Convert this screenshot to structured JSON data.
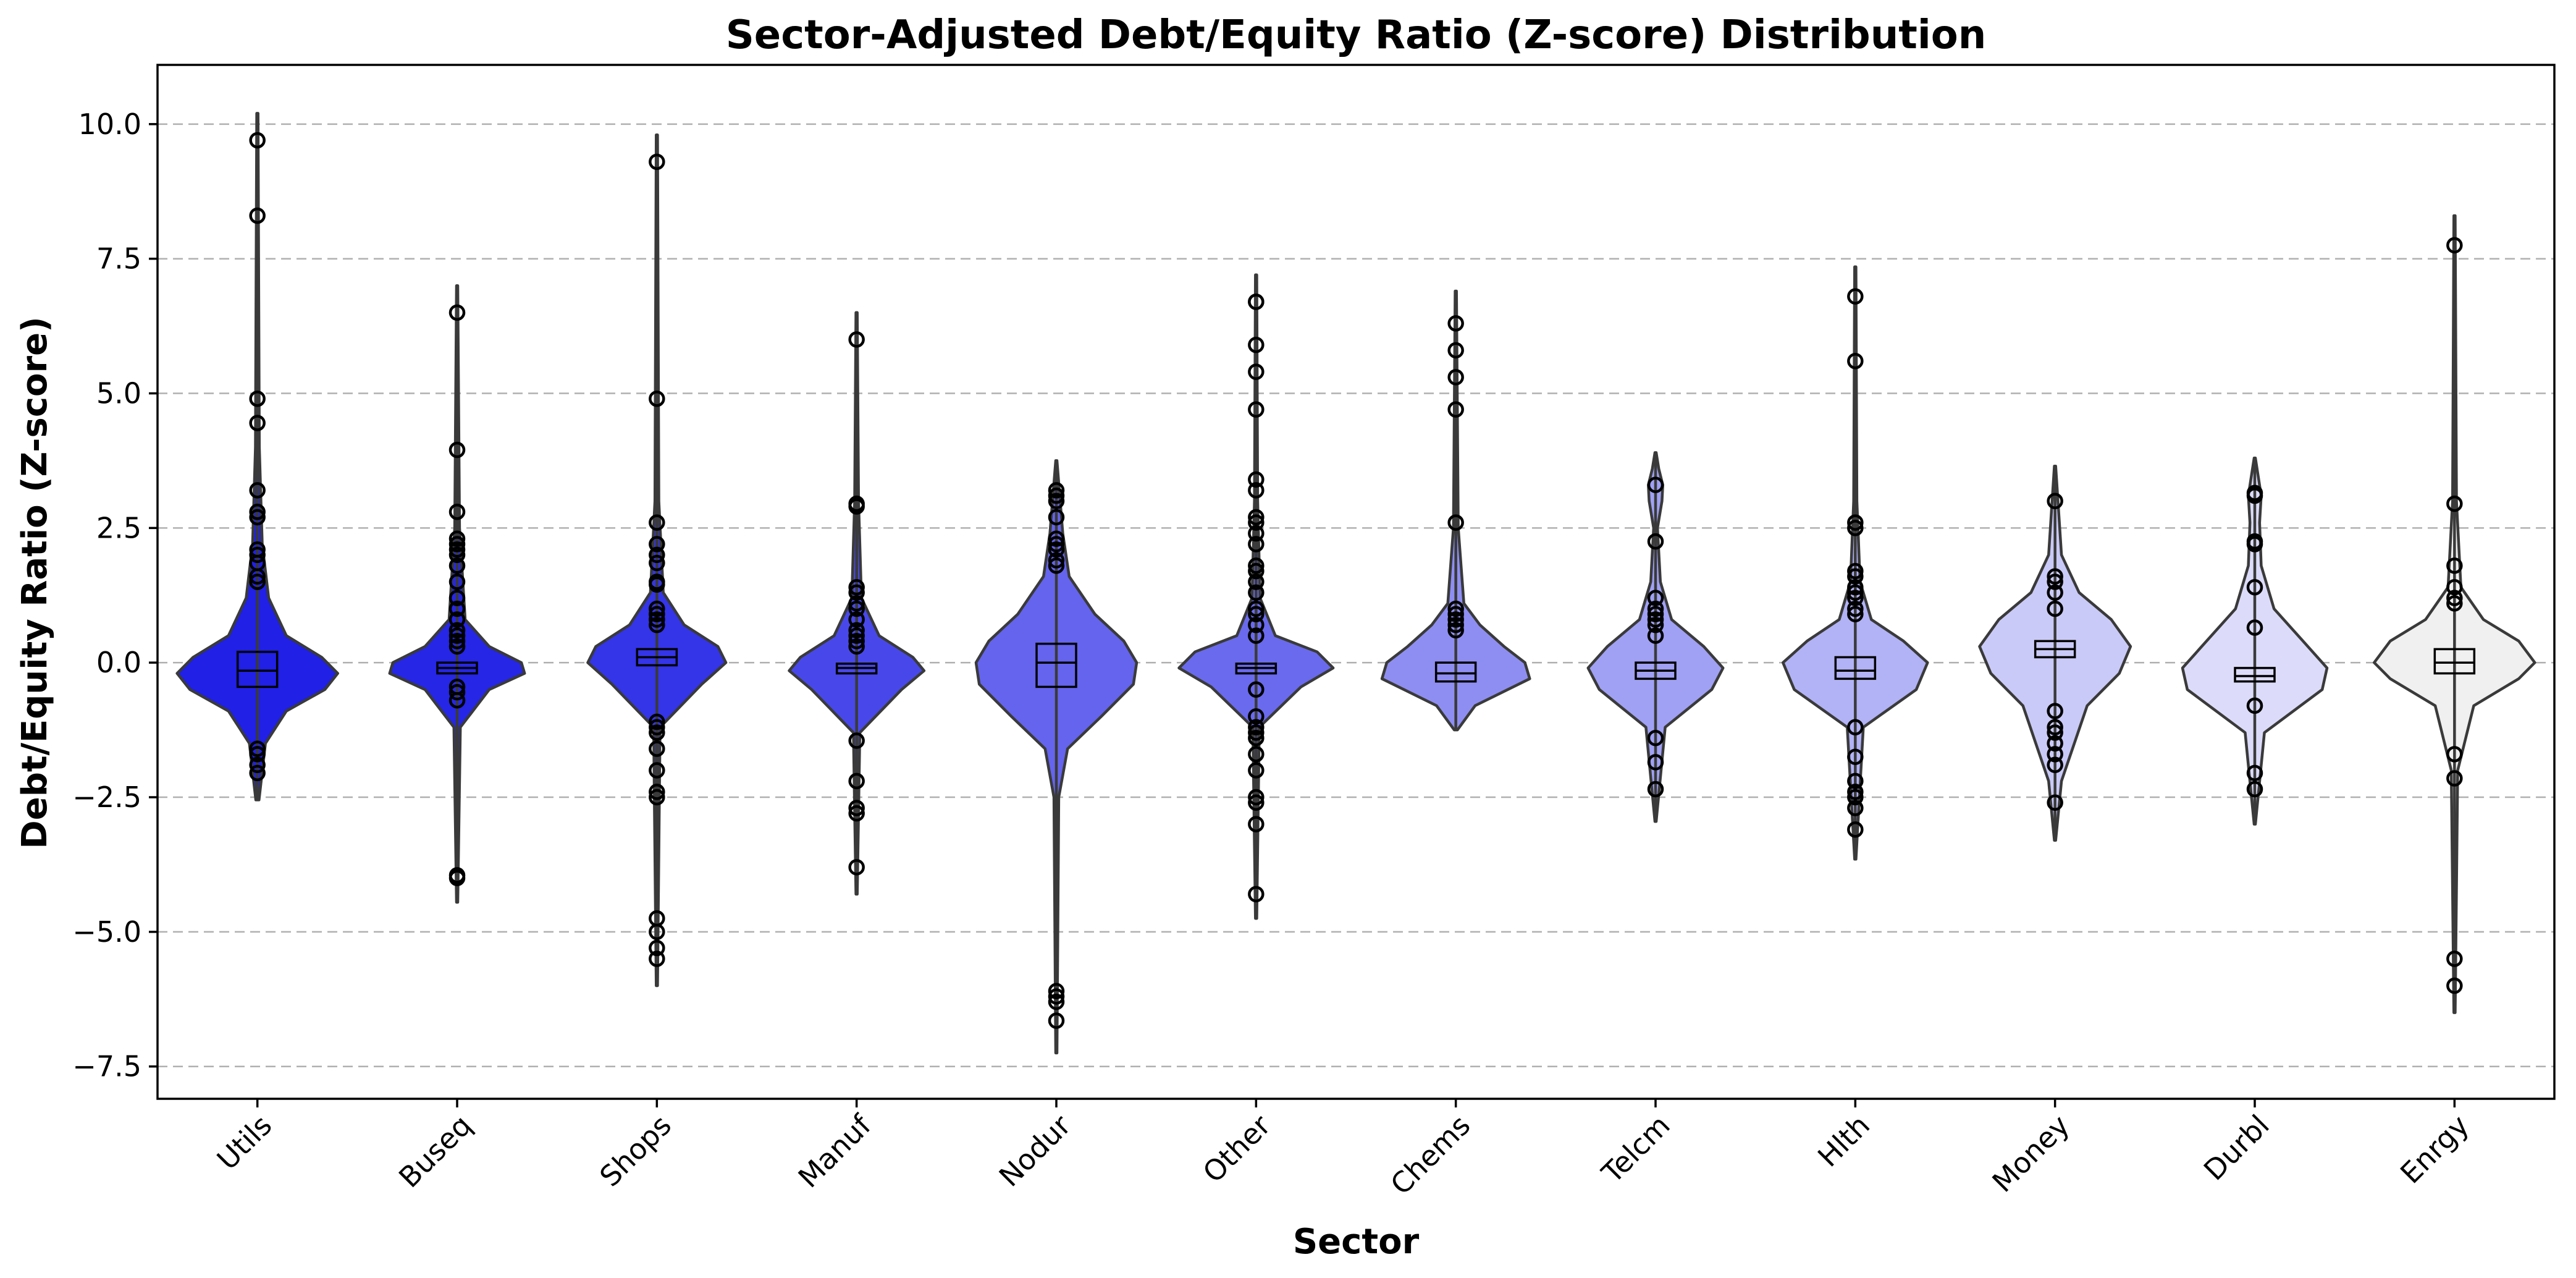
{
  "chart_data": {
    "type": "violin",
    "title": "Sector-Adjusted Debt/Equity Ratio (Z-score) Distribution",
    "xlabel": "Sector",
    "ylabel": "Debt/Equity Ratio (Z-score)",
    "ylim": [
      -8.1,
      11.1
    ],
    "yticks": [
      -7.5,
      -5.0,
      -2.5,
      0.0,
      2.5,
      5.0,
      7.5,
      10.0
    ],
    "ytick_labels": [
      "−7.5",
      "−5.0",
      "−2.5",
      "0.0",
      "2.5",
      "5.0",
      "7.5",
      "10.0"
    ],
    "grid": "y-dashed",
    "categories": [
      "Utils",
      "Buseq",
      "Shops",
      "Manuf",
      "Nodur",
      "Other",
      "Chems",
      "Telcm",
      "Hlth",
      "Money",
      "Durbl",
      "Enrgy"
    ],
    "series": [
      {
        "category": "Utils",
        "color": "#2020e6",
        "range": [
          -2.55,
          10.2
        ],
        "q1": -0.45,
        "median": -0.15,
        "q3": 0.2,
        "whisker": [
          -1.4,
          1.1
        ],
        "density": [
          [
            -2.55,
            0.01
          ],
          [
            -1.5,
            0.05
          ],
          [
            -0.9,
            0.18
          ],
          [
            -0.5,
            0.42
          ],
          [
            -0.2,
            0.5
          ],
          [
            0.1,
            0.4
          ],
          [
            0.5,
            0.18
          ],
          [
            1.2,
            0.07
          ],
          [
            2.2,
            0.03
          ],
          [
            4,
            0.012
          ],
          [
            10.2,
            0.004
          ]
        ],
        "outliers": [
          9.7,
          8.3,
          4.9,
          4.45,
          3.2,
          2.8,
          2.7,
          2.1,
          2.0,
          1.85,
          1.6,
          1.5,
          -1.6,
          -1.7,
          -1.9,
          -2.05
        ]
      },
      {
        "category": "Buseq",
        "color": "#2626e6",
        "range": [
          -4.45,
          7.0
        ],
        "q1": -0.2,
        "median": -0.1,
        "q3": 0.0,
        "whisker": [
          -0.5,
          0.3
        ],
        "density": [
          [
            -4.45,
            0.004
          ],
          [
            -1.2,
            0.02
          ],
          [
            -0.5,
            0.2
          ],
          [
            -0.2,
            0.42
          ],
          [
            0.0,
            0.4
          ],
          [
            0.3,
            0.2
          ],
          [
            0.8,
            0.05
          ],
          [
            2.5,
            0.015
          ],
          [
            7.0,
            0.004
          ]
        ],
        "outliers": [
          6.5,
          3.95,
          2.8,
          2.3,
          2.2,
          2.1,
          2.0,
          1.8,
          1.5,
          1.2,
          1.0,
          0.8,
          0.6,
          0.5,
          0.4,
          0.3,
          -0.45,
          -0.55,
          -0.7,
          -3.95,
          -4.0
        ]
      },
      {
        "category": "Shops",
        "color": "#3434e8",
        "range": [
          -6.0,
          9.8
        ],
        "q1": -0.05,
        "median": 0.1,
        "q3": 0.25,
        "whisker": [
          -0.35,
          0.6
        ],
        "density": [
          [
            -6.0,
            0.004
          ],
          [
            -1.2,
            0.02
          ],
          [
            -0.4,
            0.28
          ],
          [
            0.0,
            0.43
          ],
          [
            0.3,
            0.38
          ],
          [
            0.7,
            0.17
          ],
          [
            1.3,
            0.04
          ],
          [
            3.0,
            0.012
          ],
          [
            9.8,
            0.004
          ]
        ],
        "outliers": [
          9.3,
          4.9,
          2.6,
          2.2,
          2.0,
          1.85,
          1.5,
          1.45,
          1.0,
          0.9,
          0.8,
          0.7,
          -1.1,
          -1.2,
          -1.3,
          -1.6,
          -2.0,
          -2.4,
          -2.5,
          -4.75,
          -5.0,
          -5.3,
          -5.5
        ]
      },
      {
        "category": "Manuf",
        "color": "#4848ea",
        "range": [
          -4.3,
          6.5
        ],
        "q1": -0.2,
        "median": -0.1,
        "q3": -0.02,
        "whisker": [
          -0.4,
          0.25
        ],
        "density": [
          [
            -4.3,
            0.004
          ],
          [
            -1.3,
            0.02
          ],
          [
            -0.5,
            0.28
          ],
          [
            -0.15,
            0.42
          ],
          [
            0.1,
            0.35
          ],
          [
            0.5,
            0.14
          ],
          [
            1.2,
            0.03
          ],
          [
            3.0,
            0.012
          ],
          [
            6.5,
            0.004
          ]
        ],
        "outliers": [
          6.0,
          2.95,
          2.9,
          1.4,
          1.3,
          1.1,
          1.0,
          0.8,
          0.6,
          0.5,
          0.4,
          0.3,
          -1.45,
          -2.2,
          -2.7,
          -2.8,
          -3.8
        ]
      },
      {
        "category": "Nodur",
        "color": "#6464ee",
        "range": [
          -7.25,
          3.75
        ],
        "q1": -0.45,
        "median": 0.0,
        "q3": 0.35,
        "whisker": [
          -1.1,
          1.3
        ],
        "density": [
          [
            -7.25,
            0.004
          ],
          [
            -2.5,
            0.015
          ],
          [
            -1.6,
            0.07
          ],
          [
            -1.0,
            0.28
          ],
          [
            -0.4,
            0.48
          ],
          [
            0.0,
            0.5
          ],
          [
            0.4,
            0.42
          ],
          [
            0.9,
            0.24
          ],
          [
            1.6,
            0.08
          ],
          [
            2.4,
            0.04
          ],
          [
            3.75,
            0.004
          ]
        ],
        "outliers": [
          3.2,
          3.1,
          3.0,
          2.7,
          2.3,
          2.2,
          2.1,
          1.9,
          1.8,
          -6.1,
          -6.2,
          -6.3,
          -6.65
        ]
      },
      {
        "category": "Other",
        "color": "#6a6aee",
        "range": [
          -4.75,
          7.2
        ],
        "q1": -0.2,
        "median": -0.1,
        "q3": -0.02,
        "whisker": [
          -0.4,
          0.3
        ],
        "density": [
          [
            -4.75,
            0.004
          ],
          [
            -1.2,
            0.02
          ],
          [
            -0.45,
            0.28
          ],
          [
            -0.1,
            0.48
          ],
          [
            0.2,
            0.38
          ],
          [
            0.5,
            0.12
          ],
          [
            1.2,
            0.025
          ],
          [
            3.0,
            0.01
          ],
          [
            7.2,
            0.004
          ]
        ],
        "outliers": [
          6.7,
          6.7,
          5.9,
          5.4,
          4.7,
          3.4,
          3.2,
          2.7,
          2.6,
          2.4,
          2.2,
          1.8,
          1.7,
          1.5,
          1.3,
          1.0,
          0.9,
          0.7,
          0.5,
          -0.5,
          -1.0,
          -1.2,
          -1.3,
          -1.4,
          -1.7,
          -2.0,
          -2.5,
          -2.6,
          -3.0,
          -4.3
        ]
      },
      {
        "category": "Chems",
        "color": "#8e8ef2",
        "range": [
          -1.25,
          6.9
        ],
        "q1": -0.35,
        "median": -0.2,
        "q3": 0.0,
        "whisker": [
          -0.6,
          0.5
        ],
        "density": [
          [
            -1.25,
            0.01
          ],
          [
            -0.8,
            0.12
          ],
          [
            -0.3,
            0.46
          ],
          [
            0.0,
            0.43
          ],
          [
            0.3,
            0.3
          ],
          [
            0.7,
            0.15
          ],
          [
            1.1,
            0.05
          ],
          [
            2.5,
            0.015
          ],
          [
            6.9,
            0.004
          ]
        ],
        "outliers": [
          6.3,
          5.8,
          5.3,
          4.7,
          2.6,
          1.0,
          0.9,
          0.8,
          0.7,
          0.6
        ]
      },
      {
        "category": "Telcm",
        "color": "#a0a0f4",
        "range": [
          -2.95,
          3.9
        ],
        "q1": -0.3,
        "median": -0.15,
        "q3": 0.0,
        "whisker": [
          -0.65,
          0.45
        ],
        "density": [
          [
            -2.95,
            0.004
          ],
          [
            -1.2,
            0.06
          ],
          [
            -0.5,
            0.35
          ],
          [
            -0.1,
            0.42
          ],
          [
            0.3,
            0.3
          ],
          [
            0.8,
            0.1
          ],
          [
            1.5,
            0.03
          ],
          [
            2.5,
            0.012
          ],
          [
            3.0,
            0.04
          ],
          [
            3.3,
            0.045
          ],
          [
            3.6,
            0.02
          ],
          [
            3.9,
            0.004
          ]
        ],
        "outliers": [
          3.3,
          2.25,
          1.2,
          1.0,
          0.9,
          0.8,
          0.7,
          0.5,
          -1.4,
          -1.85,
          -2.35
        ]
      },
      {
        "category": "Hlth",
        "color": "#b2b2f6",
        "range": [
          -3.65,
          7.35
        ],
        "q1": -0.3,
        "median": -0.15,
        "q3": 0.1,
        "whisker": [
          -0.5,
          0.75
        ],
        "density": [
          [
            -3.65,
            0.004
          ],
          [
            -1.2,
            0.05
          ],
          [
            -0.5,
            0.38
          ],
          [
            0.0,
            0.45
          ],
          [
            0.4,
            0.3
          ],
          [
            0.8,
            0.1
          ],
          [
            1.5,
            0.03
          ],
          [
            3.0,
            0.01
          ],
          [
            7.35,
            0.004
          ]
        ],
        "outliers": [
          6.8,
          5.6,
          2.6,
          2.5,
          1.7,
          1.6,
          1.4,
          1.3,
          1.2,
          1.0,
          0.9,
          -1.2,
          -1.75,
          -2.2,
          -2.4,
          -2.5,
          -2.7,
          -3.1
        ]
      },
      {
        "category": "Money",
        "color": "#cacaf8",
        "range": [
          -3.3,
          3.65
        ],
        "q1": 0.1,
        "median": 0.25,
        "q3": 0.4,
        "whisker": [
          -0.3,
          0.8
        ],
        "density": [
          [
            -3.3,
            0.004
          ],
          [
            -2.2,
            0.04
          ],
          [
            -0.8,
            0.2
          ],
          [
            -0.2,
            0.4
          ],
          [
            0.3,
            0.47
          ],
          [
            0.8,
            0.35
          ],
          [
            1.3,
            0.15
          ],
          [
            2.0,
            0.04
          ],
          [
            3.65,
            0.004
          ]
        ],
        "outliers": [
          3.0,
          1.6,
          1.5,
          1.3,
          1.0,
          -0.9,
          -1.2,
          -1.3,
          -1.5,
          -1.7,
          -1.9,
          -2.6
        ]
      },
      {
        "category": "Durbl",
        "color": "#dcdcfa",
        "range": [
          -3.0,
          3.8
        ],
        "q1": -0.35,
        "median": -0.25,
        "q3": -0.1,
        "whisker": [
          -0.6,
          0.3
        ],
        "density": [
          [
            -3.0,
            0.004
          ],
          [
            -1.3,
            0.06
          ],
          [
            -0.5,
            0.42
          ],
          [
            -0.1,
            0.45
          ],
          [
            0.4,
            0.3
          ],
          [
            1.0,
            0.12
          ],
          [
            1.8,
            0.04
          ],
          [
            2.6,
            0.03
          ],
          [
            3.1,
            0.04
          ],
          [
            3.8,
            0.004
          ]
        ],
        "outliers": [
          3.15,
          3.1,
          2.25,
          2.2,
          1.4,
          0.65,
          -0.8,
          -2.05,
          -2.35
        ]
      },
      {
        "category": "Enrgy",
        "color": "#f0f0f0",
        "range": [
          -6.5,
          8.3
        ],
        "q1": -0.2,
        "median": 0.0,
        "q3": 0.25,
        "whisker": [
          -0.4,
          0.8
        ],
        "density": [
          [
            -6.5,
            0.004
          ],
          [
            -2.0,
            0.02
          ],
          [
            -0.8,
            0.12
          ],
          [
            -0.3,
            0.4
          ],
          [
            0.0,
            0.5
          ],
          [
            0.4,
            0.4
          ],
          [
            0.8,
            0.18
          ],
          [
            1.4,
            0.04
          ],
          [
            3.0,
            0.012
          ],
          [
            8.3,
            0.004
          ]
        ],
        "outliers": [
          7.75,
          2.95,
          1.8,
          1.4,
          1.2,
          1.1,
          -1.7,
          -2.15,
          -5.5,
          -6.0
        ]
      }
    ]
  }
}
